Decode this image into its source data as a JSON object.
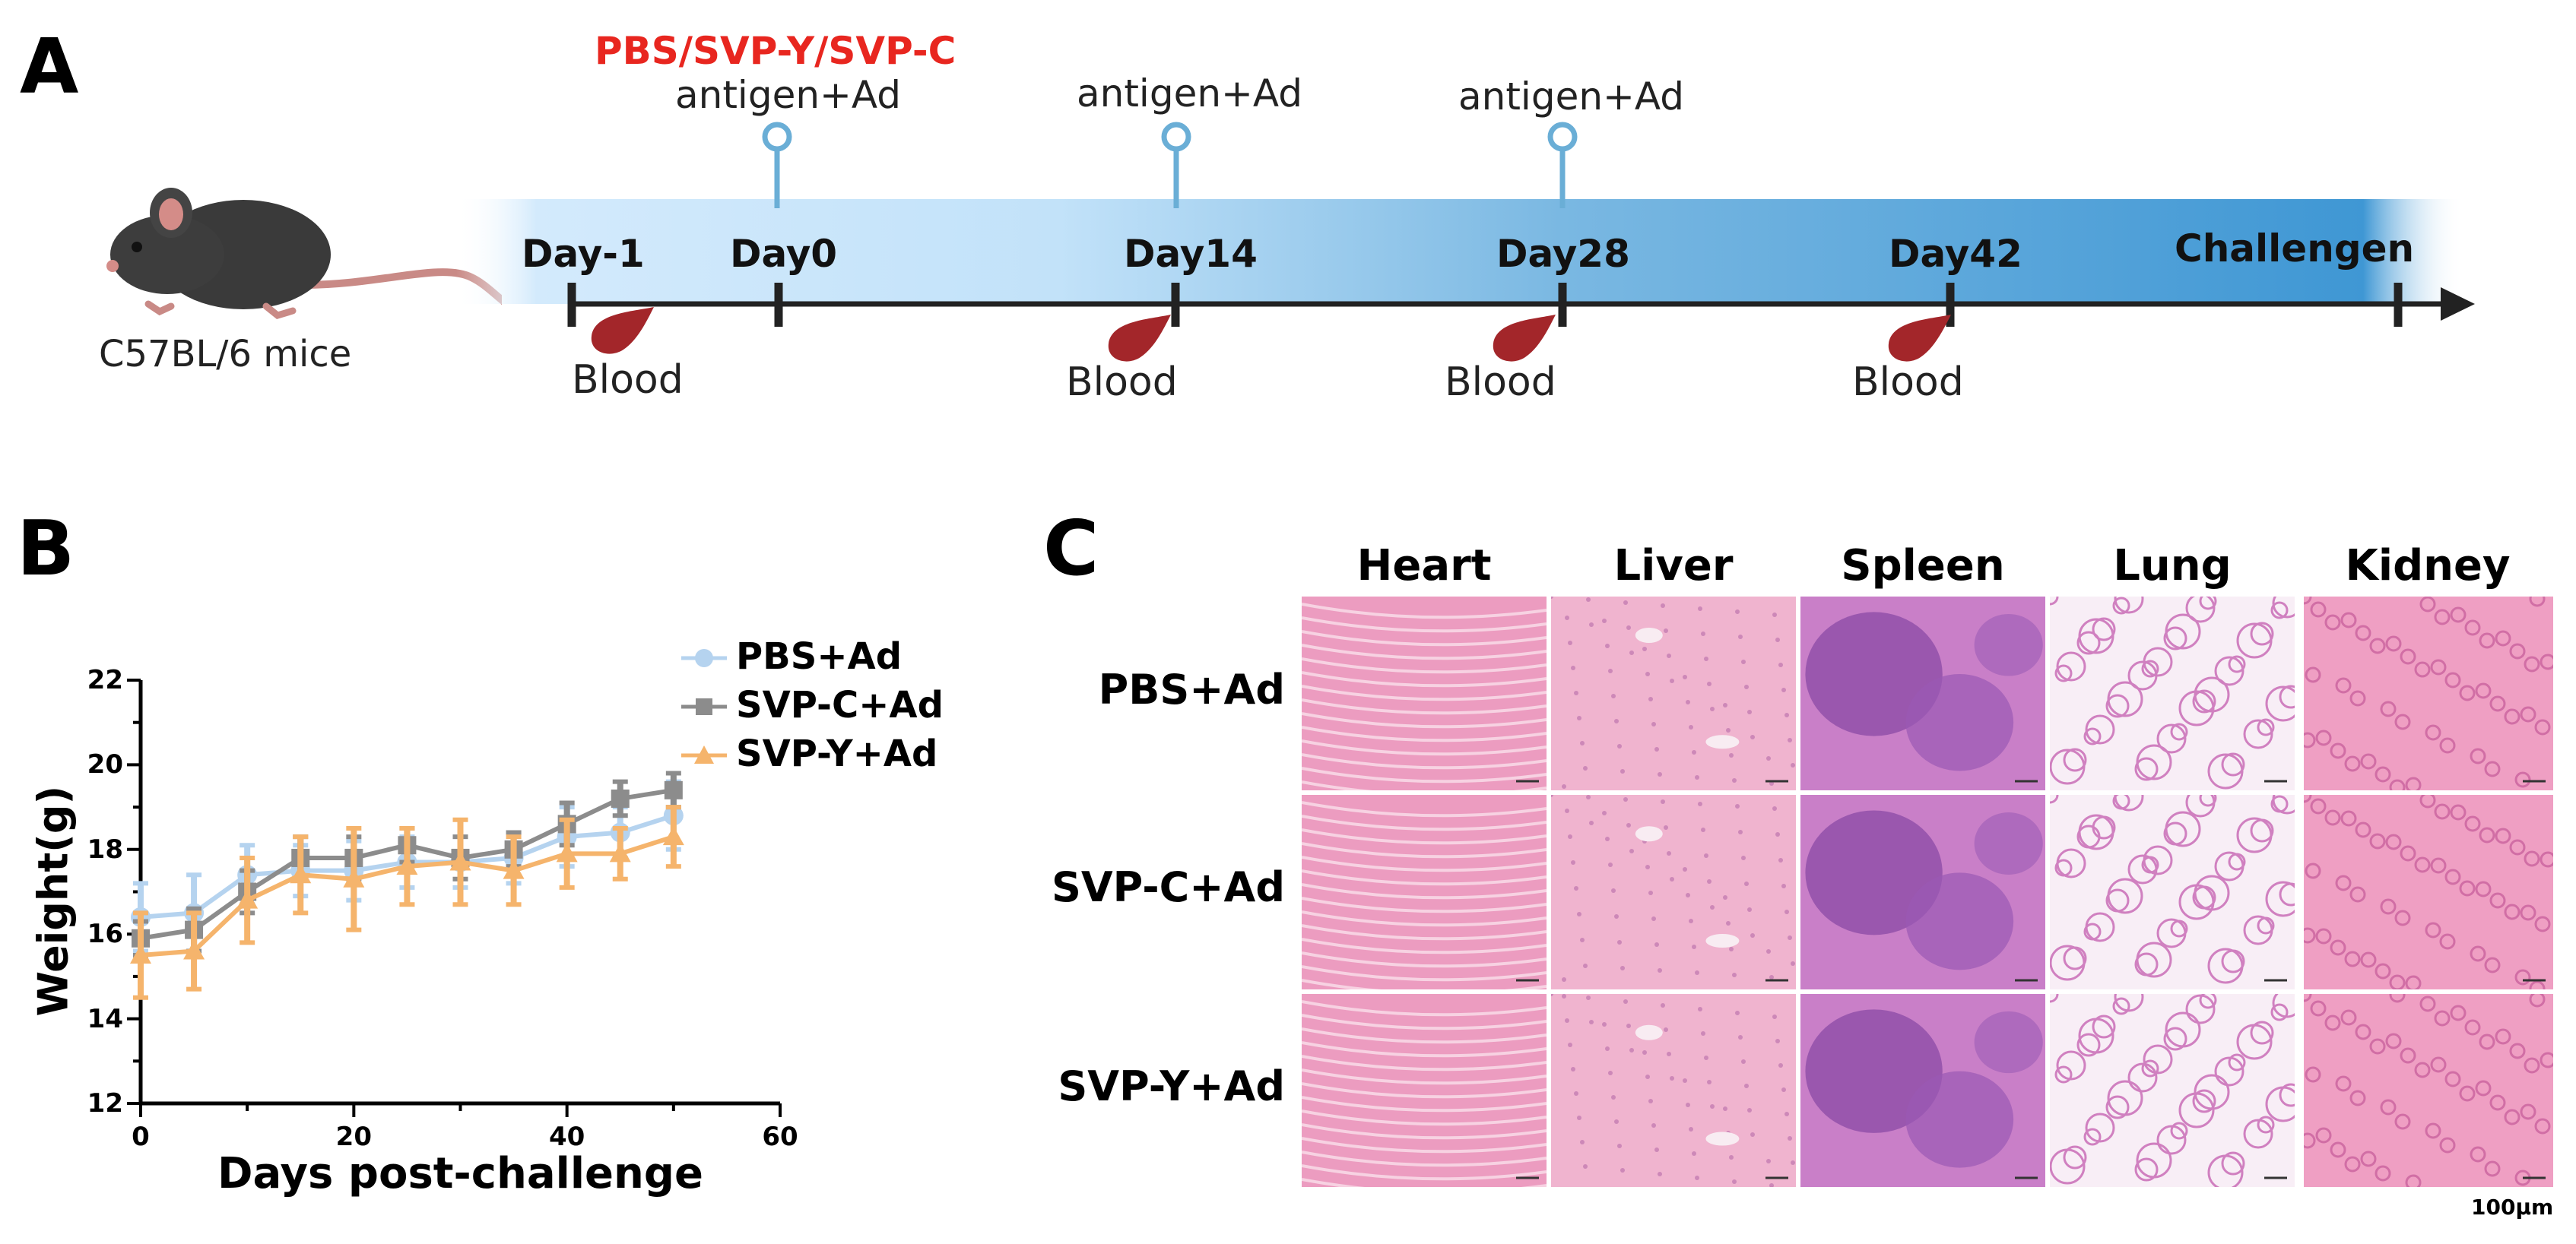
{
  "panels": {
    "a": "A",
    "b": "B",
    "c": "C"
  },
  "timeline": {
    "mouse_label": "C57BL/6 mice",
    "treatment_label": "PBS/SVP-Y/SVP-C",
    "antigen_label": "antigen+Ad",
    "blood_label": "Blood",
    "days": [
      "Day-1",
      "Day0",
      "Day14",
      "Day28",
      "Day42",
      "Challengen"
    ],
    "colors": {
      "treatment": "#e8261f",
      "pin": "#6aaed6",
      "band_light": "#d3eafc",
      "band_dark": "#3f97d4"
    }
  },
  "chart_data": {
    "type": "line",
    "xlabel": "Days post-challenge",
    "ylabel": "Weight(g)",
    "xlim": [
      0,
      60
    ],
    "ylim": [
      12,
      22
    ],
    "xticks": [
      "0",
      "20",
      "40",
      "60"
    ],
    "yticks": [
      "12",
      "14",
      "16",
      "18",
      "20",
      "22"
    ],
    "x": [
      0,
      5,
      10,
      15,
      20,
      25,
      30,
      35,
      40,
      45,
      50
    ],
    "legend_position": "top-right",
    "series": [
      {
        "name": "PBS+Ad",
        "color": "#b5d3ef",
        "marker": "circle",
        "values": [
          16.4,
          16.5,
          17.4,
          17.5,
          17.5,
          17.7,
          17.7,
          17.8,
          18.3,
          18.4,
          18.8
        ],
        "err": [
          0.8,
          0.9,
          0.7,
          0.6,
          0.7,
          0.6,
          0.6,
          0.6,
          0.7,
          0.6,
          0.8
        ]
      },
      {
        "name": "SVP-C+Ad",
        "color": "#8c8c8c",
        "marker": "square",
        "values": [
          15.9,
          16.1,
          17.0,
          17.8,
          17.8,
          18.1,
          17.8,
          18.0,
          18.6,
          19.2,
          19.4
        ],
        "err": [
          0.4,
          0.5,
          0.5,
          0.5,
          0.5,
          0.4,
          0.5,
          0.4,
          0.5,
          0.4,
          0.4
        ]
      },
      {
        "name": "SVP-Y+Ad",
        "color": "#f5b46c",
        "marker": "triangle",
        "values": [
          15.5,
          15.6,
          16.8,
          17.4,
          17.3,
          17.6,
          17.7,
          17.5,
          17.9,
          17.9,
          18.3
        ],
        "err": [
          1.0,
          0.9,
          1.0,
          0.9,
          1.2,
          0.9,
          1.0,
          0.8,
          0.8,
          0.6,
          0.7
        ]
      }
    ]
  },
  "histology": {
    "organs": [
      "Heart",
      "Liver",
      "Spleen",
      "Lung",
      "Kidney"
    ],
    "groups": [
      "PBS+Ad",
      "SVP-C+Ad",
      "SVP-Y+Ad"
    ],
    "scale_bar": "100μm",
    "tile_colors": [
      "#ec9cc0",
      "#f0b4cf",
      "#c97fc8",
      "#f8eef6",
      "#ef9fc3"
    ]
  }
}
